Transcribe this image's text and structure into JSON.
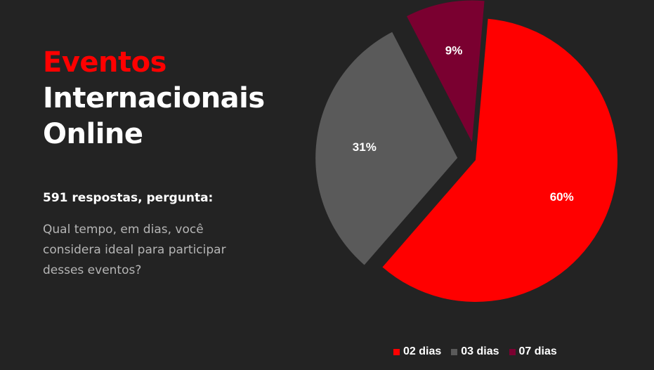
{
  "slide": {
    "title_line1": "Eventos",
    "title_line2": "Internacionais",
    "title_line3": "Online",
    "responses": "591 respostas, pergunta:",
    "question": "Qual tempo, em dias, você considera ideal para participar desses eventos?"
  },
  "chart_data": {
    "type": "pie",
    "categories": [
      "02 dias",
      "03 dias",
      "07 dias"
    ],
    "values": [
      60,
      31,
      9
    ],
    "labels": [
      "60%",
      "31%",
      "9%"
    ],
    "colors": [
      "#ff0000",
      "#5a5a5a",
      "#7a0030"
    ],
    "legend": "bottom"
  }
}
